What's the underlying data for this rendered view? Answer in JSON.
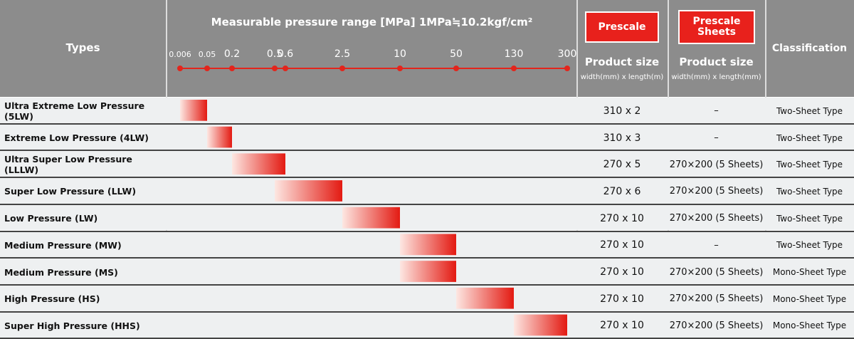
{
  "header": {
    "types": "Types",
    "range_title": "Measurable pressure range [MPa] 1MPa≒10.2kgf/cm²",
    "ticks": [
      0.006,
      0.05,
      0.2,
      0.5,
      0.6,
      2.5,
      10,
      50,
      130,
      300
    ],
    "prescale_badge": "Prescale",
    "sheets_badge": "Prescale Sheets",
    "product_size_1": "Product size",
    "unit_1": "width(mm) x length(m)",
    "product_size_2": "Product size",
    "unit_2": "width(mm) x length(mm)",
    "classification": "Classification"
  },
  "rows": [
    {
      "type": "Ultra Extreme Low Pressure (5LW)",
      "range": [
        0.006,
        0.05
      ],
      "prescale": "310 x 2",
      "sheets": "–",
      "classification": "Two-Sheet Type"
    },
    {
      "type": "Extreme Low Pressure (4LW)",
      "range": [
        0.05,
        0.2
      ],
      "prescale": "310 x 3",
      "sheets": "–",
      "classification": "Two-Sheet Type"
    },
    {
      "type": "Ultra Super Low Pressure (LLLW)",
      "range": [
        0.2,
        0.6
      ],
      "prescale": "270 x 5",
      "sheets": "270×200 (5 Sheets)",
      "classification": "Two-Sheet Type"
    },
    {
      "type": "Super Low Pressure (LLW)",
      "range": [
        0.5,
        2.5
      ],
      "prescale": "270 x 6",
      "sheets": "270×200 (5 Sheets)",
      "classification": "Two-Sheet Type"
    },
    {
      "type": "Low Pressure (LW)",
      "range": [
        2.5,
        10
      ],
      "prescale": "270 x 10",
      "sheets": "270×200 (5 Sheets)",
      "classification": "Two-Sheet Type"
    },
    {
      "type": "Medium Pressure (MW)",
      "range": [
        10,
        50
      ],
      "prescale": "270 x 10",
      "sheets": "–",
      "classification": "Two-Sheet Type"
    },
    {
      "type": "Medium Pressure (MS)",
      "range": [
        10,
        50
      ],
      "prescale": "270 x 10",
      "sheets": "270×200 (5 Sheets)",
      "classification": "Mono-Sheet Type"
    },
    {
      "type": "High Pressure (HS)",
      "range": [
        50,
        130
      ],
      "prescale": "270 x 10",
      "sheets": "270×200 (5 Sheets)",
      "classification": "Mono-Sheet Type"
    },
    {
      "type": "Super High Pressure (HHS)",
      "range": [
        130,
        300
      ],
      "prescale": "270 x 10",
      "sheets": "270×200 (5 Sheets)",
      "classification": "Mono-Sheet Type"
    }
  ]
}
